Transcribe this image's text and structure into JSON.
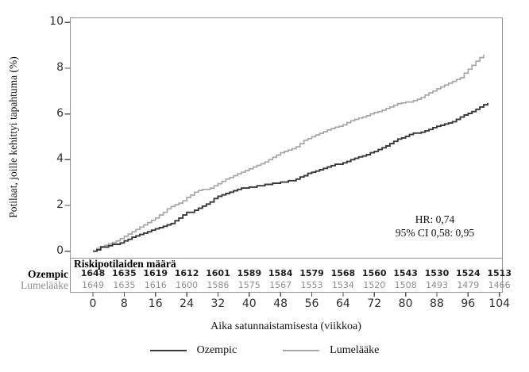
{
  "chart_data": {
    "type": "line",
    "subtype": "kaplan-meier-step-cumulative-incidence",
    "title": "",
    "xlabel": "Aika satunnaistamisesta (viikkoa)",
    "ylabel": "Potilaat, joille kehittyi tapahtuma (%)",
    "xlim": [
      -6,
      104.7
    ],
    "ylim": [
      0,
      10.2
    ],
    "x_ticks": [
      0,
      8,
      16,
      24,
      32,
      40,
      48,
      56,
      64,
      72,
      80,
      88,
      96,
      104
    ],
    "y_ticks": [
      0,
      2,
      4,
      6,
      8,
      10
    ],
    "grid": false,
    "frame_color": "#949494",
    "annotation": {
      "line1": "HR: 0,74",
      "line2": "95% CI 0,58: 0,95"
    },
    "series": [
      {
        "name": "Ozempic",
        "color": "#383838",
        "points": [
          [
            0,
            0
          ],
          [
            1,
            0.06
          ],
          [
            2,
            0.18
          ],
          [
            4,
            0.24
          ],
          [
            5,
            0.3
          ],
          [
            7,
            0.36
          ],
          [
            8,
            0.45
          ],
          [
            9,
            0.52
          ],
          [
            10,
            0.61
          ],
          [
            11,
            0.67
          ],
          [
            12,
            0.73
          ],
          [
            13,
            0.79
          ],
          [
            14,
            0.85
          ],
          [
            15,
            0.92
          ],
          [
            16,
            0.98
          ],
          [
            17,
            1.03
          ],
          [
            18,
            1.09
          ],
          [
            19,
            1.15
          ],
          [
            20,
            1.21
          ],
          [
            21,
            1.33
          ],
          [
            22,
            1.45
          ],
          [
            23,
            1.58
          ],
          [
            24,
            1.7
          ],
          [
            26,
            1.79
          ],
          [
            27,
            1.88
          ],
          [
            28,
            1.97
          ],
          [
            29,
            2.06
          ],
          [
            30,
            2.15
          ],
          [
            31,
            2.3
          ],
          [
            32,
            2.4
          ],
          [
            33,
            2.46
          ],
          [
            34,
            2.52
          ],
          [
            35,
            2.58
          ],
          [
            36,
            2.64
          ],
          [
            37,
            2.7
          ],
          [
            38,
            2.76
          ],
          [
            40,
            2.8
          ],
          [
            42,
            2.86
          ],
          [
            44,
            2.92
          ],
          [
            46,
            2.97
          ],
          [
            48,
            3.02
          ],
          [
            50,
            3.08
          ],
          [
            52,
            3.15
          ],
          [
            53,
            3.24
          ],
          [
            54,
            3.3
          ],
          [
            55,
            3.4
          ],
          [
            56,
            3.45
          ],
          [
            57,
            3.5
          ],
          [
            58,
            3.56
          ],
          [
            59,
            3.62
          ],
          [
            60,
            3.68
          ],
          [
            61,
            3.74
          ],
          [
            62,
            3.8
          ],
          [
            64,
            3.86
          ],
          [
            65,
            3.92
          ],
          [
            66,
            4.0
          ],
          [
            67,
            4.06
          ],
          [
            68,
            4.12
          ],
          [
            69,
            4.16
          ],
          [
            70,
            4.22
          ],
          [
            71,
            4.3
          ],
          [
            72,
            4.36
          ],
          [
            73,
            4.44
          ],
          [
            74,
            4.52
          ],
          [
            75,
            4.6
          ],
          [
            76,
            4.7
          ],
          [
            77,
            4.8
          ],
          [
            78,
            4.9
          ],
          [
            79,
            4.95
          ],
          [
            80,
            5.02
          ],
          [
            81,
            5.1
          ],
          [
            82,
            5.16
          ],
          [
            84,
            5.2
          ],
          [
            85,
            5.26
          ],
          [
            86,
            5.32
          ],
          [
            87,
            5.4
          ],
          [
            88,
            5.46
          ],
          [
            89,
            5.5
          ],
          [
            90,
            5.56
          ],
          [
            91,
            5.6
          ],
          [
            92,
            5.66
          ],
          [
            93,
            5.76
          ],
          [
            94,
            5.86
          ],
          [
            95,
            5.95
          ],
          [
            96,
            6.02
          ],
          [
            97,
            6.1
          ],
          [
            98,
            6.2
          ],
          [
            99,
            6.3
          ],
          [
            100,
            6.4
          ],
          [
            101,
            6.47
          ]
        ]
      },
      {
        "name": "Lumelääke",
        "color": "#a6a6a6",
        "points": [
          [
            0,
            0
          ],
          [
            1,
            0.12
          ],
          [
            2,
            0.2
          ],
          [
            3,
            0.26
          ],
          [
            4,
            0.32
          ],
          [
            5,
            0.38
          ],
          [
            6,
            0.45
          ],
          [
            7,
            0.55
          ],
          [
            8,
            0.65
          ],
          [
            9,
            0.75
          ],
          [
            10,
            0.85
          ],
          [
            11,
            0.95
          ],
          [
            12,
            1.05
          ],
          [
            13,
            1.15
          ],
          [
            14,
            1.25
          ],
          [
            15,
            1.35
          ],
          [
            16,
            1.45
          ],
          [
            17,
            1.58
          ],
          [
            18,
            1.7
          ],
          [
            19,
            1.85
          ],
          [
            20,
            1.95
          ],
          [
            21,
            2.03
          ],
          [
            22,
            2.1
          ],
          [
            23,
            2.2
          ],
          [
            24,
            2.35
          ],
          [
            25,
            2.45
          ],
          [
            26,
            2.58
          ],
          [
            27,
            2.65
          ],
          [
            28,
            2.7
          ],
          [
            30,
            2.76
          ],
          [
            31,
            2.86
          ],
          [
            32,
            2.95
          ],
          [
            33,
            3.05
          ],
          [
            34,
            3.15
          ],
          [
            35,
            3.22
          ],
          [
            36,
            3.3
          ],
          [
            37,
            3.38
          ],
          [
            38,
            3.45
          ],
          [
            39,
            3.52
          ],
          [
            40,
            3.6
          ],
          [
            41,
            3.68
          ],
          [
            42,
            3.75
          ],
          [
            43,
            3.82
          ],
          [
            44,
            3.9
          ],
          [
            45,
            4.0
          ],
          [
            46,
            4.1
          ],
          [
            47,
            4.2
          ],
          [
            48,
            4.3
          ],
          [
            49,
            4.36
          ],
          [
            50,
            4.42
          ],
          [
            51,
            4.48
          ],
          [
            52,
            4.56
          ],
          [
            53,
            4.7
          ],
          [
            54,
            4.85
          ],
          [
            55,
            4.92
          ],
          [
            56,
            5.0
          ],
          [
            57,
            5.08
          ],
          [
            58,
            5.15
          ],
          [
            59,
            5.22
          ],
          [
            60,
            5.3
          ],
          [
            61,
            5.36
          ],
          [
            62,
            5.42
          ],
          [
            63,
            5.46
          ],
          [
            64,
            5.52
          ],
          [
            65,
            5.62
          ],
          [
            66,
            5.7
          ],
          [
            67,
            5.76
          ],
          [
            68,
            5.82
          ],
          [
            69,
            5.86
          ],
          [
            70,
            5.92
          ],
          [
            71,
            6.0
          ],
          [
            72,
            6.06
          ],
          [
            73,
            6.1
          ],
          [
            74,
            6.16
          ],
          [
            75,
            6.24
          ],
          [
            76,
            6.3
          ],
          [
            77,
            6.38
          ],
          [
            78,
            6.45
          ],
          [
            79,
            6.48
          ],
          [
            80,
            6.52
          ],
          [
            82,
            6.58
          ],
          [
            83,
            6.64
          ],
          [
            84,
            6.72
          ],
          [
            85,
            6.82
          ],
          [
            86,
            6.92
          ],
          [
            87,
            7.0
          ],
          [
            88,
            7.1
          ],
          [
            89,
            7.18
          ],
          [
            90,
            7.26
          ],
          [
            91,
            7.34
          ],
          [
            92,
            7.42
          ],
          [
            93,
            7.5
          ],
          [
            94,
            7.58
          ],
          [
            95,
            7.78
          ],
          [
            96,
            7.95
          ],
          [
            97,
            8.12
          ],
          [
            98,
            8.3
          ],
          [
            99,
            8.46
          ],
          [
            100,
            8.6
          ]
        ]
      }
    ],
    "risk_table": {
      "header": "Riskipotilaiden määrä",
      "rows": [
        {
          "label": "Ozempic",
          "values": [
            1648,
            1635,
            1619,
            1612,
            1601,
            1589,
            1584,
            1579,
            1568,
            1560,
            1543,
            1530,
            1524,
            1513
          ]
        },
        {
          "label": "Lumelääke",
          "values": [
            1649,
            1635,
            1616,
            1600,
            1586,
            1575,
            1567,
            1553,
            1534,
            1520,
            1508,
            1493,
            1479,
            1466
          ]
        }
      ]
    },
    "legend": [
      {
        "label": "Ozempic",
        "color": "#383838"
      },
      {
        "label": "Lumelääke",
        "color": "#a6a6a6"
      }
    ],
    "legend_position": "bottom-center"
  }
}
